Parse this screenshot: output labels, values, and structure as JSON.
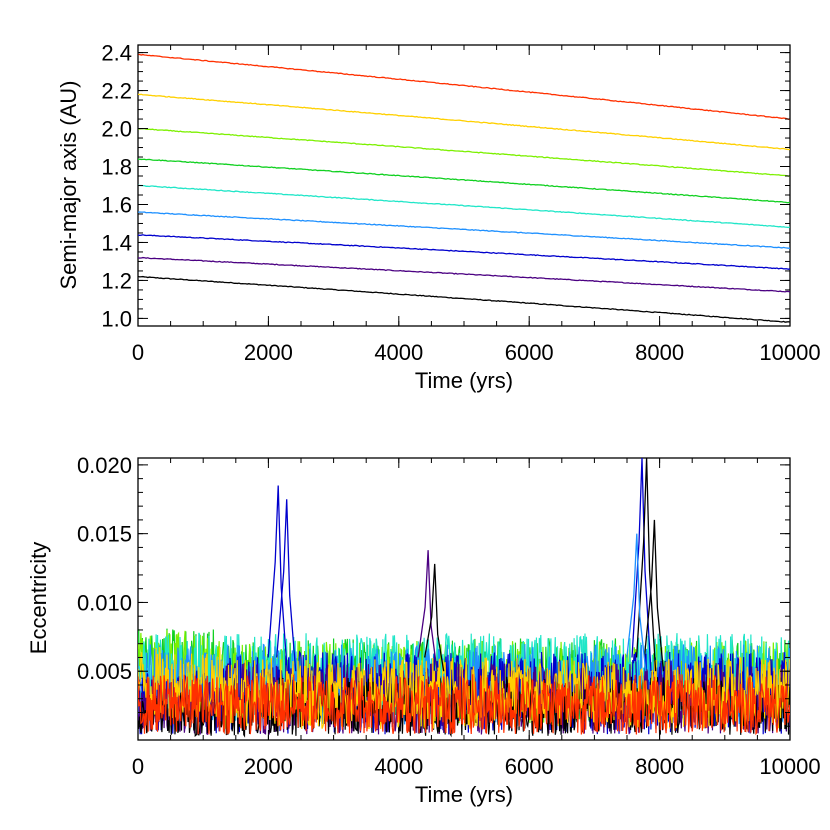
{
  "chart_data": [
    {
      "type": "line",
      "xlabel": "Time (yrs)",
      "ylabel": "Semi-major axis (AU)",
      "xlim": [
        0,
        10000
      ],
      "ylim": [
        0.96,
        2.44
      ],
      "xticks": [
        "0",
        "2000",
        "4000",
        "6000",
        "8000",
        "10000"
      ],
      "yticks": [
        "1.0",
        "1.2",
        "1.4",
        "1.6",
        "1.8",
        "2.0",
        "2.2",
        "2.4"
      ],
      "series": [
        {
          "color": "#000000",
          "start": 1.22,
          "end": 0.98
        },
        {
          "color": "#4b0082",
          "start": 1.32,
          "end": 1.14
        },
        {
          "color": "#0000cd",
          "start": 1.44,
          "end": 1.26
        },
        {
          "color": "#1e90ff",
          "start": 1.56,
          "end": 1.37
        },
        {
          "color": "#20e6c8",
          "start": 1.7,
          "end": 1.48
        },
        {
          "color": "#10d020",
          "start": 1.84,
          "end": 1.61
        },
        {
          "color": "#7cf000",
          "start": 2.0,
          "end": 1.75
        },
        {
          "color": "#ffd000",
          "start": 2.18,
          "end": 1.89
        },
        {
          "color": "#ff3000",
          "start": 2.39,
          "end": 2.05
        }
      ]
    },
    {
      "type": "line",
      "xlabel": "Time (yrs)",
      "ylabel": "Eccentricity",
      "xlim": [
        0,
        10000
      ],
      "ylim": [
        0.0,
        0.0205
      ],
      "xticks": [
        "0",
        "2000",
        "4000",
        "6000",
        "8000",
        "10000"
      ],
      "yticks": [
        "0.005",
        "0.010",
        "0.015",
        "0.020"
      ],
      "series": [
        {
          "color": "#000000",
          "base": 0.0024,
          "amp": 0.0022
        },
        {
          "color": "#4b0082",
          "base": 0.003,
          "amp": 0.0026
        },
        {
          "color": "#0000cd",
          "base": 0.0034,
          "amp": 0.003
        },
        {
          "color": "#1e90ff",
          "base": 0.004,
          "amp": 0.003
        },
        {
          "color": "#20e6c8",
          "base": 0.0046,
          "amp": 0.0032
        },
        {
          "color": "#10d020",
          "base": 0.0044,
          "amp": 0.003
        },
        {
          "color": "#7cf000",
          "base": 0.0042,
          "amp": 0.003
        },
        {
          "color": "#ffd000",
          "base": 0.0034,
          "amp": 0.0026
        },
        {
          "color": "#ff3000",
          "base": 0.0026,
          "amp": 0.0022
        }
      ],
      "spikes": [
        {
          "x": 2150,
          "y": 0.0185,
          "color": "#0000cd"
        },
        {
          "x": 2280,
          "y": 0.0175,
          "color": "#0000cd"
        },
        {
          "x": 4450,
          "y": 0.0138,
          "color": "#4b0082"
        },
        {
          "x": 4550,
          "y": 0.0128,
          "color": "#000000"
        },
        {
          "x": 7730,
          "y": 0.0205,
          "color": "#0000cd"
        },
        {
          "x": 7800,
          "y": 0.0205,
          "color": "#000000"
        },
        {
          "x": 7920,
          "y": 0.016,
          "color": "#000000"
        },
        {
          "x": 7650,
          "y": 0.015,
          "color": "#1e90ff"
        }
      ]
    }
  ]
}
